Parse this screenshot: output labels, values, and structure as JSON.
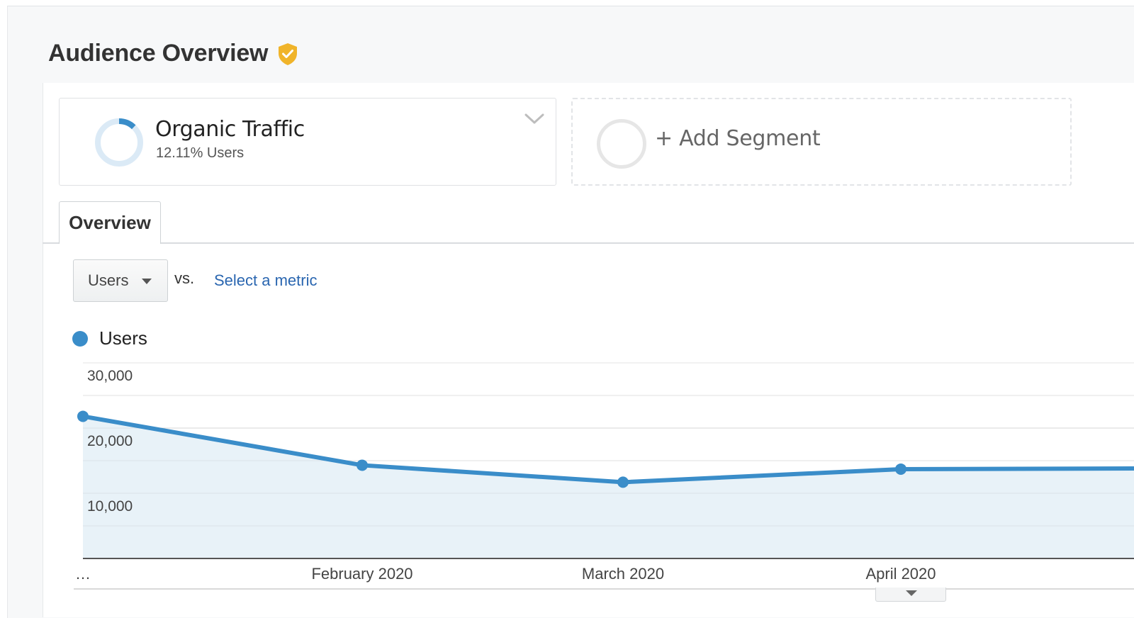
{
  "page": {
    "title": "Audience Overview"
  },
  "segment": {
    "name": "Organic Traffic",
    "percent_text": "12.11% Users",
    "share": 0.1211
  },
  "add_segment": {
    "label": "+ Add Segment"
  },
  "tabs": [
    {
      "label": "Overview",
      "active": true
    }
  ],
  "metric": {
    "selected": "Users",
    "vs_label": "vs.",
    "compare_link": "Select a metric"
  },
  "legend": {
    "label": "Users"
  },
  "colors": {
    "series": "#3a8dc9",
    "fill": "#e8f2f8",
    "badge": "#f0b42a",
    "link": "#2a66b0"
  },
  "chart_data": {
    "type": "area",
    "series": [
      {
        "name": "Users",
        "x": [
          "…",
          "February 2020",
          "March 2020",
          "April 2020",
          ""
        ],
        "values": [
          21800,
          14300,
          11700,
          13700,
          13800
        ]
      }
    ],
    "x_tick_labels": [
      "…",
      "February 2020",
      "March 2020",
      "April 2020"
    ],
    "y_ticks": [
      10000,
      20000,
      30000
    ],
    "y_tick_labels": [
      "10,000",
      "20,000",
      "30,000"
    ],
    "ylim": [
      0,
      30000
    ],
    "grid": true
  }
}
